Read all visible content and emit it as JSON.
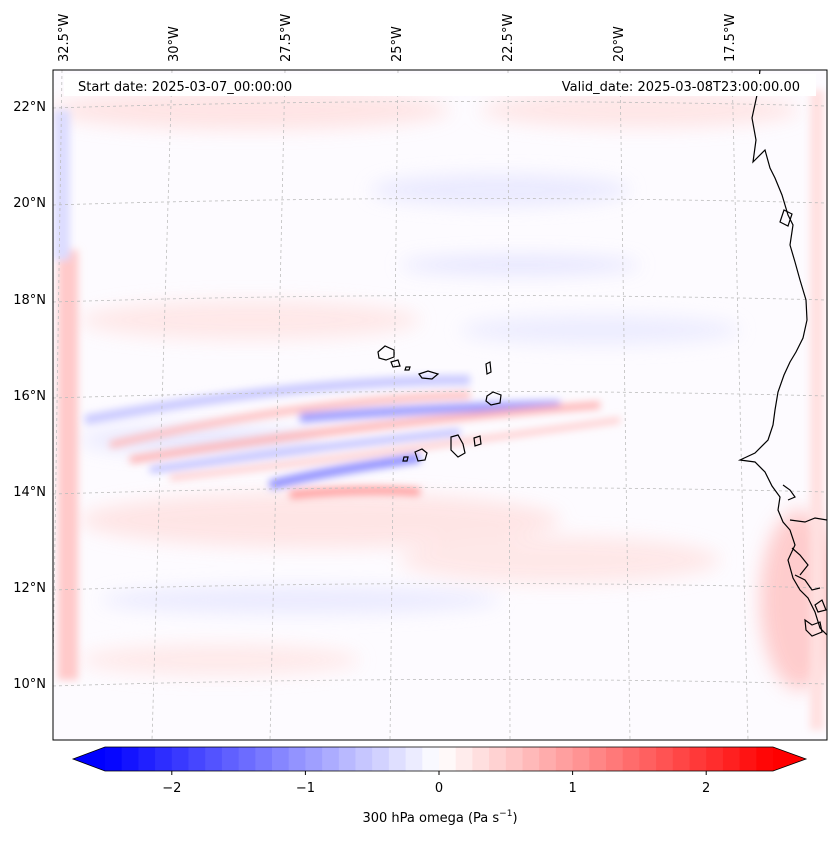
{
  "map": {
    "start_label": "Start date: 2025-03-07_00:00:00",
    "valid_label": "Valid_date: 2025-03-08T23:00:00.00",
    "lon_labels": [
      "32.5°W",
      "30°W",
      "27.5°W",
      "25°W",
      "22.5°W",
      "20°W",
      "17.5°W"
    ],
    "lat_labels": [
      "22°N",
      "20°N",
      "18°N",
      "16°N",
      "14°N",
      "12°N",
      "10°N"
    ]
  },
  "colorbar": {
    "label_main": "300 hPa omega (Pa s",
    "label_exp": "−1",
    "label_close": ")",
    "ticks": [
      "−2",
      "−1",
      "0",
      "1",
      "2"
    ],
    "tick_values": [
      -2,
      -1,
      0,
      1,
      2
    ],
    "vmin": -2.5,
    "vmax": 2.5,
    "levels": 40,
    "neg_color": "#0000ff",
    "mid_color": "#ffffff",
    "pos_color": "#ff0000"
  },
  "colors": {
    "coast": "#000000",
    "grid": "#bdbdbd",
    "warm_band": "#ffb3b3",
    "cool_band": "#b3b3ff"
  }
}
